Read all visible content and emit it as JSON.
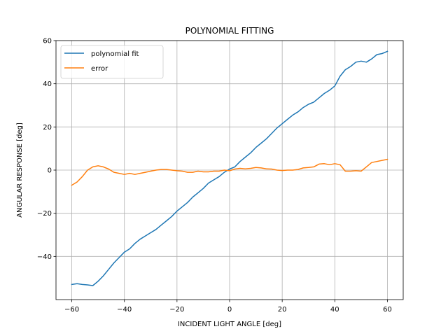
{
  "chart_data": {
    "type": "line",
    "title": "POLYNOMIAL FITTING",
    "xlabel": "INCIDENT LIGHT ANGLE [deg]",
    "ylabel": "ANGULAR RESPONSE [deg]",
    "xlim": [
      -66,
      66
    ],
    "ylim": [
      -60,
      60
    ],
    "xticks": [
      -60,
      -40,
      -20,
      0,
      20,
      40,
      60
    ],
    "yticks": [
      -40,
      -20,
      0,
      20,
      40,
      60
    ],
    "xtick_labels": [
      "−60",
      "−40",
      "−20",
      "0",
      "20",
      "40",
      "60"
    ],
    "ytick_labels": [
      "−40",
      "−20",
      "0",
      "20",
      "40",
      "60"
    ],
    "grid": true,
    "legend_position": "upper left",
    "series": [
      {
        "name": "polynomial fit",
        "color": "#1f77b4",
        "x": [
          -60,
          -58,
          -56,
          -54,
          -52,
          -50,
          -48,
          -46,
          -44,
          -42,
          -40,
          -38,
          -36,
          -34,
          -32,
          -30,
          -28,
          -26,
          -24,
          -22,
          -20,
          -18,
          -16,
          -14,
          -12,
          -10,
          -8,
          -6,
          -4,
          -2,
          0,
          2,
          4,
          6,
          8,
          10,
          12,
          14,
          16,
          18,
          20,
          22,
          24,
          26,
          28,
          30,
          32,
          34,
          36,
          38,
          40,
          42,
          44,
          46,
          48,
          50,
          52,
          54,
          56,
          58,
          60
        ],
        "y": [
          -53,
          -52.6,
          -53,
          -53.2,
          -53.5,
          -51.5,
          -49,
          -46,
          -43,
          -40.5,
          -38,
          -36.5,
          -34,
          -32,
          -30.5,
          -29,
          -27.5,
          -25.5,
          -23.5,
          -21.5,
          -19,
          -17,
          -15,
          -12.5,
          -10.5,
          -8.5,
          -6,
          -4.5,
          -3,
          -1,
          0.5,
          1.5,
          4,
          6,
          8,
          10.5,
          12.5,
          14.5,
          17,
          19.5,
          21.5,
          23.5,
          25.5,
          27,
          29,
          30.5,
          31.5,
          33.5,
          35.5,
          37,
          39,
          43.5,
          46.5,
          48,
          50,
          50.5,
          50,
          51.5,
          53.5,
          54,
          55
        ]
      },
      {
        "name": "error",
        "color": "#ff7f0e",
        "x": [
          -60,
          -58,
          -56,
          -54,
          -52,
          -50,
          -48,
          -46,
          -44,
          -42,
          -40,
          -38,
          -36,
          -34,
          -32,
          -30,
          -28,
          -26,
          -24,
          -22,
          -20,
          -18,
          -16,
          -14,
          -12,
          -10,
          -8,
          -6,
          -4,
          -2,
          0,
          2,
          4,
          6,
          8,
          10,
          12,
          14,
          16,
          18,
          20,
          22,
          24,
          26,
          28,
          30,
          32,
          34,
          36,
          38,
          40,
          42,
          44,
          46,
          48,
          50,
          52,
          54,
          56,
          58,
          60
        ],
        "y": [
          -7,
          -5.5,
          -3,
          0,
          1.5,
          2,
          1.5,
          0.5,
          -1,
          -1.5,
          -2,
          -1.5,
          -2,
          -1.5,
          -1,
          -0.5,
          0,
          0.3,
          0.3,
          0,
          -0.3,
          -0.5,
          -1,
          -1,
          -0.5,
          -0.8,
          -0.8,
          -0.5,
          -0.5,
          0,
          -0.3,
          0.5,
          0.8,
          0.6,
          0.8,
          1.2,
          1,
          0.6,
          0.5,
          0,
          -0.2,
          0,
          0,
          0.3,
          1,
          1.2,
          1.5,
          2.8,
          3,
          2.5,
          3,
          2.5,
          -0.5,
          -0.5,
          -0.3,
          -0.5,
          1.5,
          3.5,
          4,
          4.5,
          5
        ]
      }
    ]
  }
}
